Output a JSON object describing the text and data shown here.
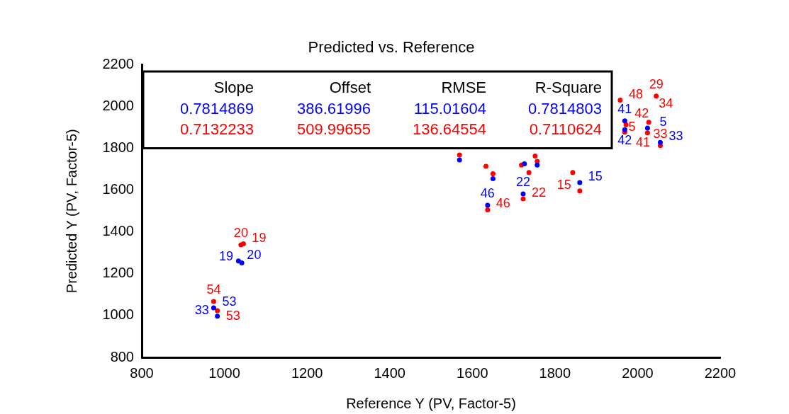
{
  "chart_data": {
    "type": "scatter",
    "title": "Predicted vs. Reference",
    "xlabel": "Reference Y (PV, Factor-5)",
    "ylabel": "Predicted Y (PV, Factor-5)",
    "xlim": [
      800,
      2200
    ],
    "xticks": [
      800,
      1000,
      1200,
      1400,
      1600,
      1800,
      2000,
      2200
    ],
    "ylim": [
      800,
      2200
    ],
    "yticks": [
      800,
      1000,
      1200,
      1400,
      1600,
      1800,
      2000,
      2200
    ],
    "grid": false,
    "legend": false,
    "marker": "circle",
    "series": [
      {
        "color": "#0000ff",
        "x": [
          974,
          983,
          1034,
          1042,
          1569,
          1637,
          1650,
          1723,
          1726,
          1757,
          1860,
          1969,
          1969,
          2024,
          2055
        ],
        "values": [
          1037,
          997,
          1261,
          1252,
          1744,
          1528,
          1655,
          1582,
          1726,
          1720,
          1636,
          1889,
          1931,
          1897,
          1828
        ]
      },
      {
        "color": "#ff0000",
        "x": [
          974,
          983,
          1040,
          1046,
          1569,
          1637,
          1633,
          1650,
          1723,
          1719,
          1737,
          1757,
          1752,
          1843,
          1860,
          1969,
          1972,
          2024,
          2027,
          2055,
          1958,
          2045
        ],
        "values": [
          1067,
          1023,
          1338,
          1343,
          1768,
          1506,
          1714,
          1678,
          1558,
          1720,
          1684,
          1738,
          1763,
          1684,
          1596,
          1877,
          1913,
          1874,
          1925,
          1813,
          2030,
          2050
        ]
      }
    ],
    "annotations": [
      "Slope",
      "Offset",
      "RMSE",
      "R-Square",
      "0.7814869",
      "386.61996",
      "115.01604",
      "0.7814803",
      "0.7132233",
      "509.99655",
      "136.64554",
      "0.7110624",
      {
        "text": "53",
        "x": 974,
        "y": 1037
      },
      {
        "text": "33",
        "x": 983,
        "y": 997
      },
      {
        "text": "20",
        "x": 1034,
        "y": 1261
      },
      {
        "text": "19",
        "x": 1042,
        "y": 1252
      },
      {
        "text": "46",
        "x": 1637,
        "y": 1528
      },
      {
        "text": "22",
        "x": 1723,
        "y": 1582
      },
      {
        "text": "15",
        "x": 1860,
        "y": 1636
      },
      {
        "text": "42",
        "x": 1969,
        "y": 1889
      },
      {
        "text": "41",
        "x": 1969,
        "y": 1931
      },
      {
        "text": "5",
        "x": 2024,
        "y": 1897
      },
      {
        "text": "33",
        "x": 2055,
        "y": 1828
      },
      {
        "text": "54",
        "x": 974,
        "y": 1067
      },
      {
        "text": "53",
        "x": 983,
        "y": 1023
      },
      {
        "text": "20",
        "x": 1040,
        "y": 1338
      },
      {
        "text": "19",
        "x": 1046,
        "y": 1343
      },
      {
        "text": "46",
        "x": 1637,
        "y": 1506
      },
      {
        "text": "22",
        "x": 1723,
        "y": 1558
      },
      {
        "text": "15",
        "x": 1860,
        "y": 1596
      },
      {
        "text": "42",
        "x": 1969,
        "y": 1877
      },
      {
        "text": "41",
        "x": 1972,
        "y": 1913
      },
      {
        "text": "5",
        "x": 2024,
        "y": 1874
      },
      {
        "text": "34",
        "x": 2027,
        "y": 1925
      },
      {
        "text": "33",
        "x": 2055,
        "y": 1813
      },
      {
        "text": "48",
        "x": 1958,
        "y": 2030
      },
      {
        "text": "29",
        "x": 2045,
        "y": 2050
      }
    ]
  }
}
